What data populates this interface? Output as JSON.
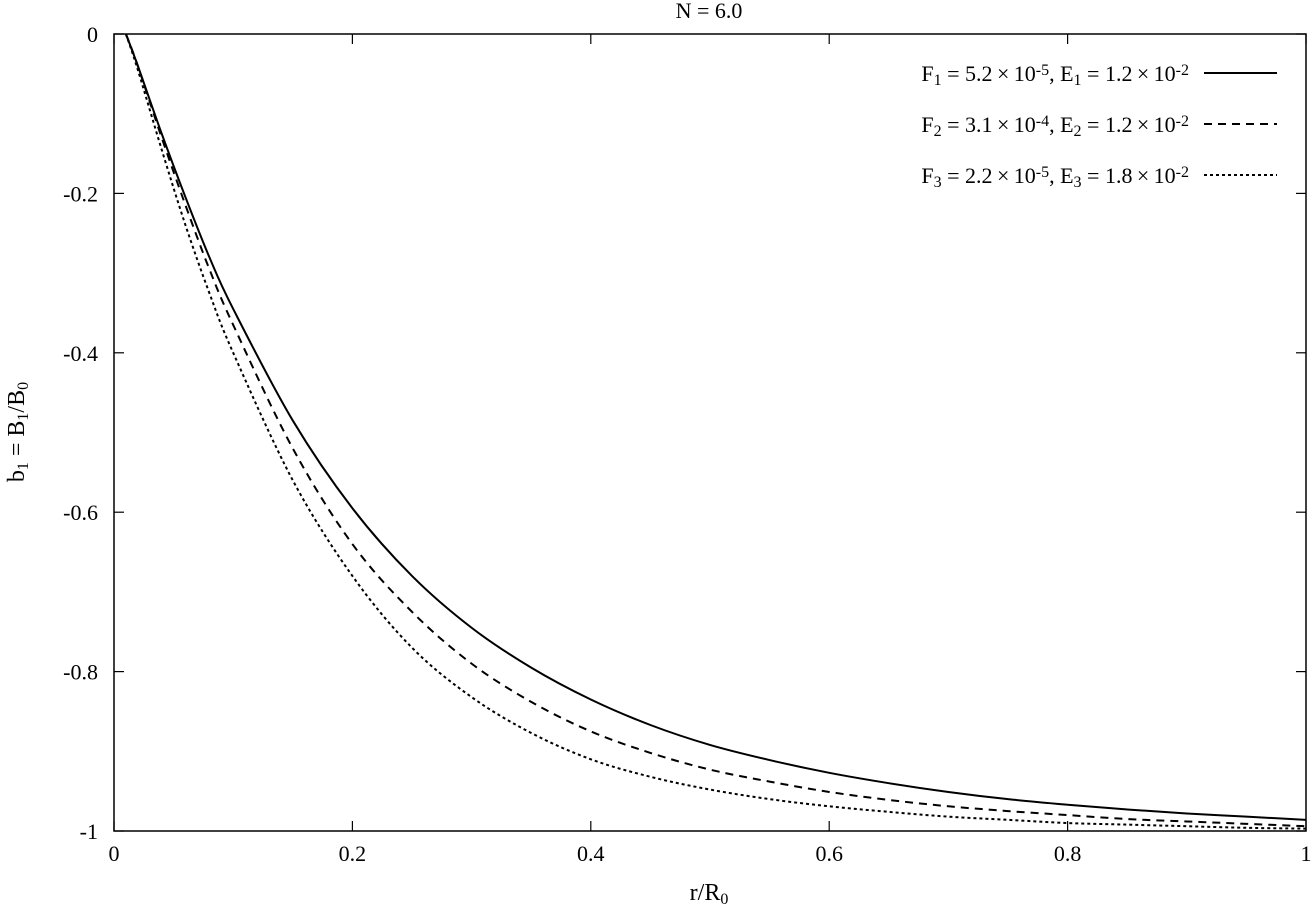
{
  "chart_data": {
    "type": "line",
    "title": "N = 6.0",
    "xlabel": {
      "main": "r/R",
      "sub": "0"
    },
    "ylabel": {
      "parts": [
        {
          "t": "b"
        },
        {
          "t": "1",
          "sub": true
        },
        {
          "t": " = B"
        },
        {
          "t": "1",
          "sub": true
        },
        {
          "t": "/B"
        },
        {
          "t": "0",
          "sub": true
        }
      ]
    },
    "xlim": [
      0,
      1
    ],
    "ylim": [
      -1,
      0
    ],
    "xticks": [
      {
        "value": 0,
        "label": "0"
      },
      {
        "value": 0.2,
        "label": "0.2"
      },
      {
        "value": 0.4,
        "label": "0.4"
      },
      {
        "value": 0.6,
        "label": "0.6"
      },
      {
        "value": 0.8,
        "label": "0.8"
      },
      {
        "value": 1,
        "label": "1"
      }
    ],
    "yticks": [
      {
        "value": 0,
        "label": "0"
      },
      {
        "value": -0.2,
        "label": "-0.2"
      },
      {
        "value": -0.4,
        "label": "-0.4"
      },
      {
        "value": -0.6,
        "label": "-0.6"
      },
      {
        "value": -0.8,
        "label": "-0.8"
      },
      {
        "value": -1,
        "label": "-1"
      }
    ],
    "grid": false,
    "legend_position": "top-right",
    "series": [
      {
        "name": "F1 = 5.2×10-5, E1 = 1.2×10-2",
        "legend_parts": [
          {
            "t": "F"
          },
          {
            "t": "1",
            "sub": true
          },
          {
            "t": " = 5.2 × 10"
          },
          {
            "t": "-5",
            "sup": true
          },
          {
            "t": ", E"
          },
          {
            "t": "1",
            "sub": true
          },
          {
            "t": " = 1.2 × 10"
          },
          {
            "t": "-2",
            "sup": true
          }
        ],
        "dash": "solid",
        "x": [
          0.01,
          0.02,
          0.04,
          0.06,
          0.08,
          0.1,
          0.15,
          0.2,
          0.25,
          0.3,
          0.35,
          0.4,
          0.45,
          0.5,
          0.55,
          0.6,
          0.65,
          0.7,
          0.75,
          0.8,
          0.85,
          0.9,
          0.95,
          1.0
        ],
        "y": [
          0.0,
          -0.04,
          -0.125,
          -0.205,
          -0.28,
          -0.345,
          -0.485,
          -0.595,
          -0.68,
          -0.745,
          -0.795,
          -0.835,
          -0.867,
          -0.892,
          -0.911,
          -0.927,
          -0.94,
          -0.951,
          -0.96,
          -0.967,
          -0.973,
          -0.978,
          -0.982,
          -0.986
        ]
      },
      {
        "name": "F2 = 3.1×10-4, E2 = 1.2×10-2",
        "legend_parts": [
          {
            "t": "F"
          },
          {
            "t": "2",
            "sub": true
          },
          {
            "t": " = 3.1 × 10"
          },
          {
            "t": "-4",
            "sup": true
          },
          {
            "t": ", E"
          },
          {
            "t": "2",
            "sub": true
          },
          {
            "t": " = 1.2 × 10"
          },
          {
            "t": "-2",
            "sup": true
          }
        ],
        "dash": "dashed",
        "x": [
          0.01,
          0.02,
          0.04,
          0.06,
          0.08,
          0.1,
          0.15,
          0.2,
          0.25,
          0.3,
          0.35,
          0.4,
          0.45,
          0.5,
          0.55,
          0.6,
          0.65,
          0.7,
          0.75,
          0.8,
          0.85,
          0.9,
          0.95,
          1.0
        ],
        "y": [
          0.0,
          -0.04,
          -0.13,
          -0.215,
          -0.295,
          -0.365,
          -0.52,
          -0.64,
          -0.725,
          -0.79,
          -0.838,
          -0.875,
          -0.902,
          -0.923,
          -0.938,
          -0.951,
          -0.961,
          -0.969,
          -0.975,
          -0.98,
          -0.985,
          -0.988,
          -0.991,
          -0.994
        ]
      },
      {
        "name": "F3 = 2.2×10-5, E3 = 1.8×10-2",
        "legend_parts": [
          {
            "t": "F"
          },
          {
            "t": "3",
            "sub": true
          },
          {
            "t": " = 2.2 × 10"
          },
          {
            "t": "-5",
            "sup": true
          },
          {
            "t": ", E"
          },
          {
            "t": "3",
            "sub": true
          },
          {
            "t": " = 1.8 × 10"
          },
          {
            "t": "-2",
            "sup": true
          }
        ],
        "dash": "dotted",
        "x": [
          0.01,
          0.02,
          0.04,
          0.06,
          0.08,
          0.1,
          0.15,
          0.2,
          0.25,
          0.3,
          0.35,
          0.4,
          0.45,
          0.5,
          0.55,
          0.6,
          0.65,
          0.7,
          0.75,
          0.8,
          0.85,
          0.9,
          0.95,
          1.0
        ],
        "y": [
          0.0,
          -0.045,
          -0.145,
          -0.24,
          -0.325,
          -0.4,
          -0.56,
          -0.68,
          -0.77,
          -0.832,
          -0.877,
          -0.91,
          -0.932,
          -0.948,
          -0.96,
          -0.969,
          -0.976,
          -0.982,
          -0.986,
          -0.99,
          -0.992,
          -0.994,
          -0.996,
          -0.997
        ]
      }
    ]
  }
}
